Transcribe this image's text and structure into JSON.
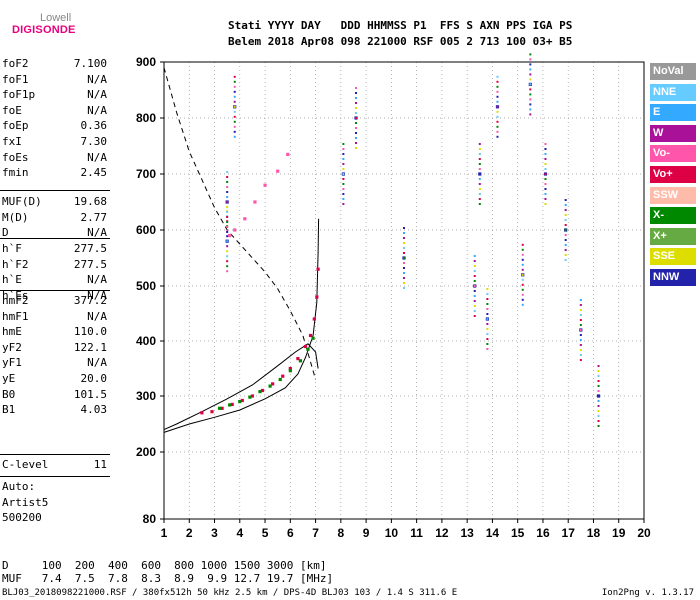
{
  "logo": {
    "top": "Lowell",
    "bottom": "DIGISONDE"
  },
  "header": {
    "labels_line": "Stati YYYY DAY   DDD HHMMSS P1  FFS S AXN PPS IGA PS",
    "values_line": "Belem 2018 Apr08 098 221000 RSF 005 2 713 100 03+ B5"
  },
  "params": {
    "group1": [
      {
        "label": "foF2",
        "value": "7.100"
      },
      {
        "label": "foF1",
        "value": "N/A"
      },
      {
        "label": "foF1p",
        "value": "N/A"
      },
      {
        "label": "foE",
        "value": "N/A"
      },
      {
        "label": "foEp",
        "value": "0.36"
      },
      {
        "label": "fxI",
        "value": "7.30"
      },
      {
        "label": "foEs",
        "value": "N/A"
      },
      {
        "label": "fmin",
        "value": "2.45"
      }
    ],
    "group2": [
      {
        "label": "MUF(D)",
        "value": "19.68"
      },
      {
        "label": "M(D)",
        "value": "2.77"
      },
      {
        "label": "D",
        "value": "N/A"
      }
    ],
    "group3": [
      {
        "label": "h`F",
        "value": "277.5"
      },
      {
        "label": "h`F2",
        "value": "277.5"
      },
      {
        "label": "h`E",
        "value": "N/A"
      },
      {
        "label": "h`Es",
        "value": "N/A"
      }
    ],
    "group4": [
      {
        "label": "hmF2",
        "value": "377.2"
      },
      {
        "label": "hmF1",
        "value": "N/A"
      },
      {
        "label": "hmE",
        "value": "110.0"
      },
      {
        "label": "yF2",
        "value": "122.1"
      },
      {
        "label": "yF1",
        "value": "N/A"
      },
      {
        "label": "yE",
        "value": "20.0"
      },
      {
        "label": "B0",
        "value": "101.5"
      },
      {
        "label": "B1",
        "value": "4.03"
      }
    ],
    "group5": [
      {
        "label": "C-level",
        "value": "11"
      }
    ],
    "auto": [
      "Auto:",
      "Artist5",
      "500200"
    ]
  },
  "legend": [
    {
      "label": "NoVal",
      "color": "#999999"
    },
    {
      "label": "NNE",
      "color": "#66ccff"
    },
    {
      "label": "E",
      "color": "#33aaff"
    },
    {
      "label": "W",
      "color": "#aa1199"
    },
    {
      "label": "Vo-",
      "color": "#ff55aa"
    },
    {
      "label": "Vo+",
      "color": "#dd0044"
    },
    {
      "label": "SSW",
      "color": "#ffbbaa"
    },
    {
      "label": "X-",
      "color": "#008800"
    },
    {
      "label": "X+",
      "color": "#66aa44"
    },
    {
      "label": "SSE",
      "color": "#dddd00"
    },
    {
      "label": "NNW",
      "color": "#2222aa"
    }
  ],
  "chart_data": {
    "type": "scatter",
    "x_ticks": [
      1,
      2,
      3,
      4,
      5,
      6,
      7,
      8,
      9,
      10,
      11,
      12,
      13,
      14,
      15,
      16,
      17,
      18,
      19,
      20
    ],
    "y_ticks": [
      80,
      200,
      300,
      400,
      500,
      600,
      700,
      800,
      900
    ],
    "xlim": [
      1,
      20
    ],
    "ylim": [
      80,
      900
    ],
    "grid": true,
    "series": [
      {
        "name": "O-trace (Vo+/Vo-)",
        "points": [
          [
            2.5,
            270
          ],
          [
            2.9,
            272
          ],
          [
            3.3,
            278
          ],
          [
            3.7,
            285
          ],
          [
            4.1,
            292
          ],
          [
            4.5,
            300
          ],
          [
            4.9,
            310
          ],
          [
            5.3,
            322
          ],
          [
            5.7,
            336
          ],
          [
            6.0,
            350
          ],
          [
            6.3,
            368
          ],
          [
            6.6,
            390
          ],
          [
            6.8,
            410
          ],
          [
            6.95,
            440
          ],
          [
            7.05,
            480
          ],
          [
            7.1,
            530
          ]
        ]
      },
      {
        "name": "X-trace",
        "points": [
          [
            3.2,
            278
          ],
          [
            3.6,
            284
          ],
          [
            4.0,
            290
          ],
          [
            4.4,
            298
          ],
          [
            4.8,
            308
          ],
          [
            5.2,
            318
          ],
          [
            5.6,
            330
          ],
          [
            6.0,
            346
          ],
          [
            6.4,
            364
          ],
          [
            6.7,
            385
          ],
          [
            6.9,
            405
          ]
        ]
      },
      {
        "name": "Multi-hop",
        "points": [
          [
            3.6,
            590
          ],
          [
            3.8,
            600
          ],
          [
            4.2,
            620
          ],
          [
            4.6,
            650
          ],
          [
            5.0,
            680
          ],
          [
            5.5,
            705
          ],
          [
            5.9,
            735
          ]
        ]
      },
      {
        "name": "Vertical-streaks",
        "points": [
          [
            3.5,
            580
          ],
          [
            3.5,
            650
          ],
          [
            3.8,
            820
          ],
          [
            8.1,
            700
          ],
          [
            8.6,
            800
          ],
          [
            10.5,
            550
          ],
          [
            13.3,
            500
          ],
          [
            13.5,
            700
          ],
          [
            13.8,
            440
          ],
          [
            14.2,
            820
          ],
          [
            15.2,
            520
          ],
          [
            15.5,
            860
          ],
          [
            16.1,
            700
          ],
          [
            16.9,
            600
          ],
          [
            17.5,
            420
          ],
          [
            18.2,
            300
          ]
        ]
      }
    ],
    "profile_curve": [
      [
        1.0,
        235
      ],
      [
        2.0,
        250
      ],
      [
        3.0,
        262
      ],
      [
        4.0,
        275
      ],
      [
        5.0,
        295
      ],
      [
        5.8,
        315
      ],
      [
        6.3,
        340
      ],
      [
        6.6,
        370
      ],
      [
        6.9,
        410
      ],
      [
        7.05,
        470
      ],
      [
        7.1,
        560
      ],
      [
        7.12,
        620
      ]
    ],
    "profile_upper": [
      [
        1.0,
        240
      ],
      [
        1.5,
        250
      ],
      [
        2.5,
        272
      ],
      [
        3.5,
        295
      ],
      [
        4.5,
        320
      ],
      [
        5.5,
        355
      ],
      [
        6.2,
        380
      ],
      [
        6.7,
        395
      ],
      [
        7.0,
        380
      ],
      [
        7.1,
        350
      ]
    ],
    "dashed_curve": [
      [
        1.0,
        890
      ],
      [
        1.5,
        810
      ],
      [
        2.0,
        740
      ],
      [
        2.5,
        690
      ],
      [
        3.0,
        640
      ],
      [
        3.5,
        600
      ],
      [
        4.0,
        575
      ],
      [
        4.5,
        550
      ],
      [
        5.0,
        525
      ],
      [
        5.5,
        495
      ],
      [
        6.0,
        455
      ],
      [
        6.5,
        410
      ],
      [
        7.0,
        330
      ]
    ]
  },
  "footer": {
    "d_row": "D     100  200  400  600  800 1000 1500 3000 [km]",
    "muf_row": "MUF   7.4  7.5  7.8  8.3  8.9  9.9 12.7 19.7 [MHz]",
    "file_info": "BLJ03_2018098221000.RSF / 380fx512h 50 kHz 2.5 km / DPS-4D BLJ03 103 / 1.4 S 311.6 E",
    "version": "Ion2Png v. 1.3.17"
  }
}
